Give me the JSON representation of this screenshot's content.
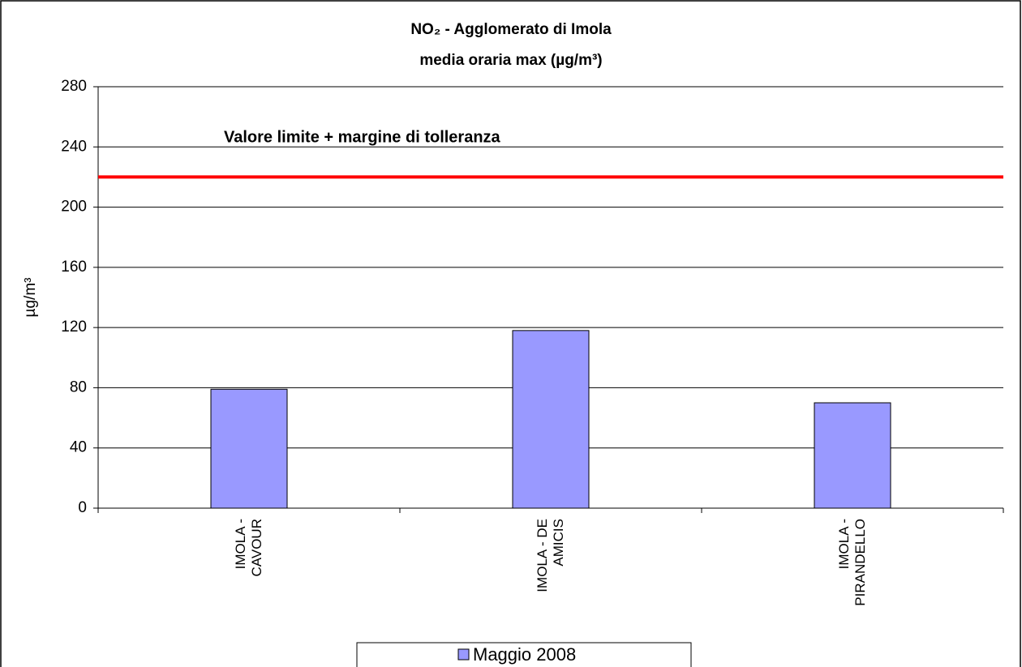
{
  "chart_data": {
    "type": "bar",
    "title": "NO₂ - Agglomerato di Imola",
    "subtitle": "media oraria max  (µg/m³)",
    "y_label": "µg/m³",
    "categories": [
      "IMOLA -\nCAVOUR",
      "IMOLA - DE\nAMICIS",
      "IMOLA -\nPIRANDELLO"
    ],
    "series": [
      {
        "name": "Maggio 2008",
        "color": "#9999ff",
        "values": [
          79,
          118,
          70
        ]
      }
    ],
    "ylim": [
      0,
      280
    ],
    "yticks": [
      0,
      40,
      80,
      120,
      160,
      200,
      240,
      280
    ],
    "grid": true,
    "reference_line": {
      "value": 220,
      "label": "Valore limite + margine di tolleranza",
      "color": "#ff0000"
    },
    "legend": "bottom"
  }
}
